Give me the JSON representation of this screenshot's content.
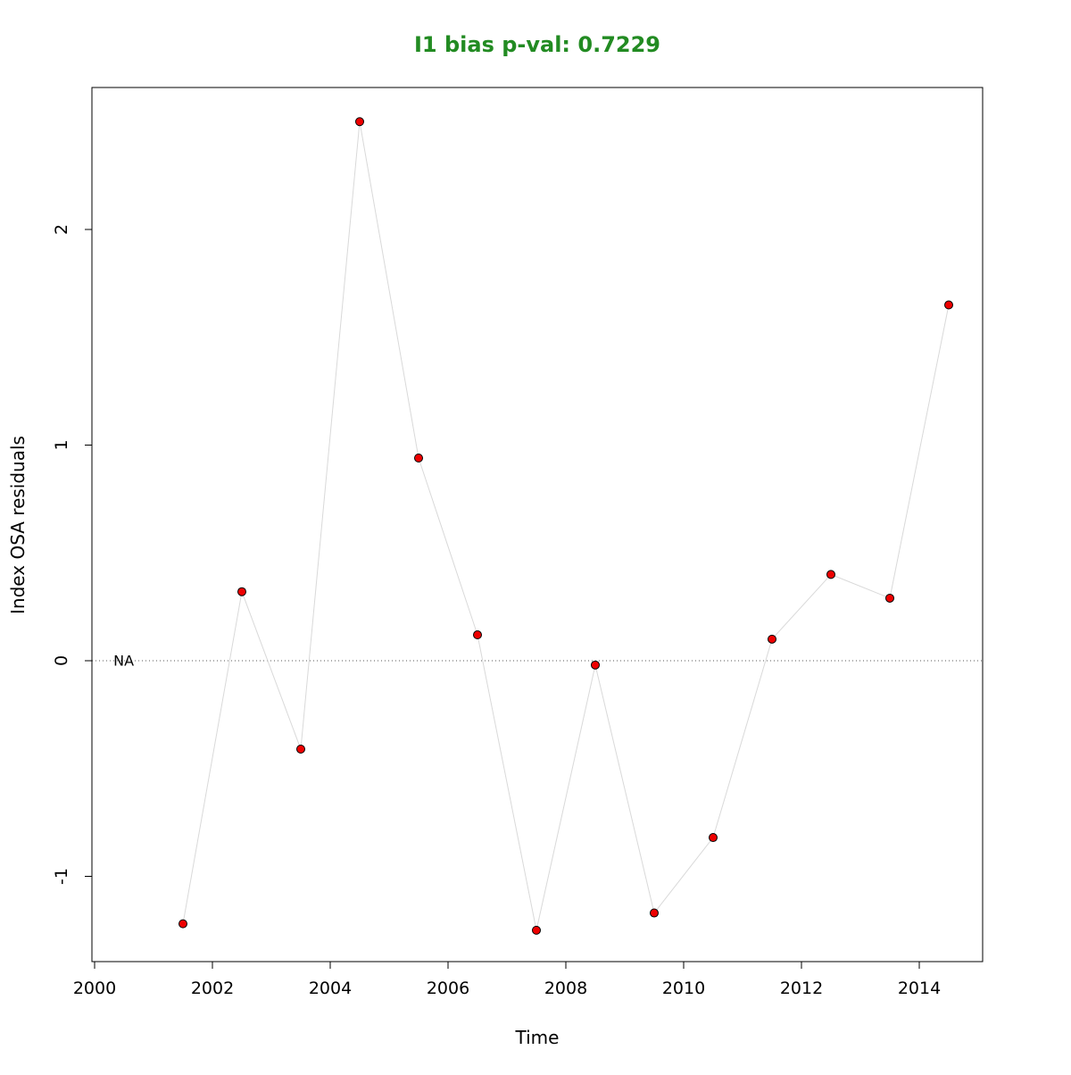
{
  "chart_data": {
    "type": "scatter",
    "title": "I1 bias p-val: 0.7229",
    "title_color": "#228B22",
    "xlabel": "Time",
    "ylabel": "Index OSA residuals",
    "xlim": [
      2000,
      2015
    ],
    "ylim": [
      -1.4,
      2.55
    ],
    "x_ticks": [
      2000,
      2002,
      2004,
      2006,
      2008,
      2010,
      2012,
      2014
    ],
    "y_ticks": [
      -1,
      0,
      1,
      2
    ],
    "x_tick_labels": [
      "2000",
      "2002",
      "2004",
      "2006",
      "2008",
      "2010",
      "2012",
      "2014"
    ],
    "y_tick_labels": [
      "-1",
      "0",
      "1",
      "2"
    ],
    "reference_line": {
      "y": 0,
      "style": "dotted",
      "color": "#555555"
    },
    "annotation": {
      "text": "NA",
      "x": 2000.35,
      "y": 0
    },
    "series": [
      {
        "line_color": "#d9d9d9",
        "point_fill": "#ee0000",
        "point_stroke": "#000000",
        "points": [
          {
            "x": 2001.5,
            "y": -1.22
          },
          {
            "x": 2002.5,
            "y": 0.32
          },
          {
            "x": 2003.5,
            "y": -0.41
          },
          {
            "x": 2004.5,
            "y": 2.5
          },
          {
            "x": 2005.5,
            "y": 0.94
          },
          {
            "x": 2006.5,
            "y": 0.12
          },
          {
            "x": 2007.5,
            "y": -1.25
          },
          {
            "x": 2008.5,
            "y": -0.02
          },
          {
            "x": 2009.5,
            "y": -1.17
          },
          {
            "x": 2010.5,
            "y": -0.82
          },
          {
            "x": 2011.5,
            "y": 0.1
          },
          {
            "x": 2012.5,
            "y": 0.4
          },
          {
            "x": 2013.5,
            "y": 0.29
          },
          {
            "x": 2014.5,
            "y": 1.65
          }
        ]
      }
    ],
    "grid": false,
    "legend": "none"
  }
}
